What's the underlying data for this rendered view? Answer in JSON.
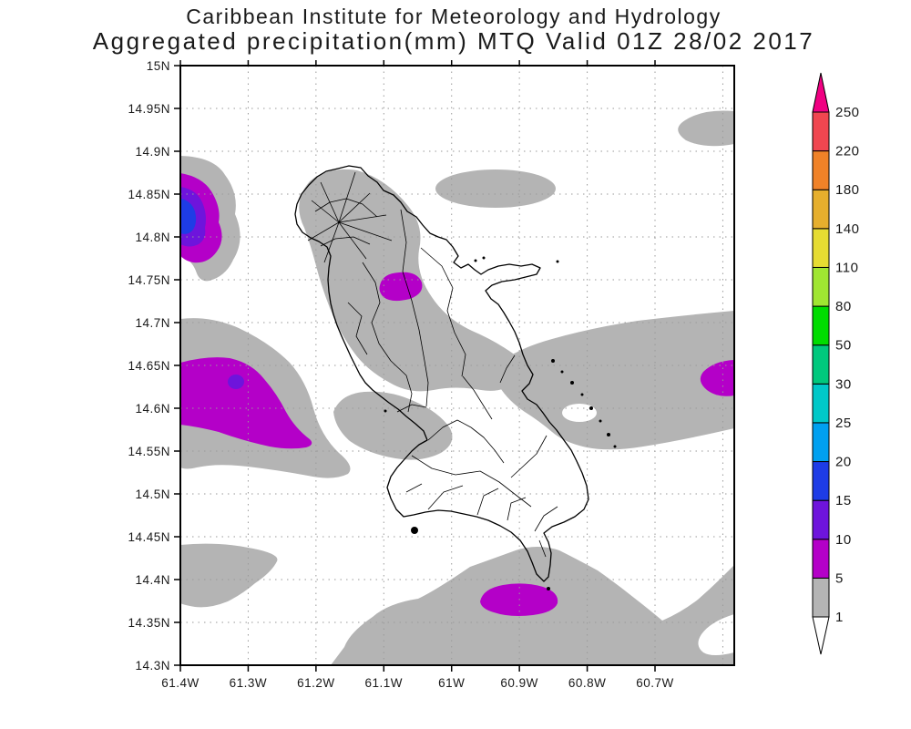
{
  "header": {
    "line1": "Caribbean Institute for Meteorology and Hydrology",
    "line2": "Aggregated precipitation(mm) MTQ Valid 01Z 28/02 2017"
  },
  "chart_data": {
    "type": "heatmap",
    "subtype": "filled-contour precipitation map over Martinique (MTQ)",
    "title": "Caribbean Institute for Meteorology and Hydrology",
    "subtitle": "Aggregated precipitation(mm) MTQ Valid 01Z 28/02 2017",
    "units": "mm",
    "grid": "on (dotted)",
    "y_axis": {
      "side": "left",
      "ticks": [
        {
          "v": 15.0,
          "label": "15N"
        },
        {
          "v": 14.95,
          "label": "14.95N"
        },
        {
          "v": 14.9,
          "label": "14.9N"
        },
        {
          "v": 14.85,
          "label": "14.85N"
        },
        {
          "v": 14.8,
          "label": "14.8N"
        },
        {
          "v": 14.75,
          "label": "14.75N"
        },
        {
          "v": 14.7,
          "label": "14.7N"
        },
        {
          "v": 14.65,
          "label": "14.65N"
        },
        {
          "v": 14.6,
          "label": "14.6N"
        },
        {
          "v": 14.55,
          "label": "14.55N"
        },
        {
          "v": 14.5,
          "label": "14.5N"
        },
        {
          "v": 14.45,
          "label": "14.45N"
        },
        {
          "v": 14.4,
          "label": "14.4N"
        },
        {
          "v": 14.35,
          "label": "14.35N"
        },
        {
          "v": 14.3,
          "label": "14.3N"
        }
      ]
    },
    "x_axis": {
      "side": "bottom",
      "ticks": [
        {
          "v": 61.4,
          "label": "61.4W"
        },
        {
          "v": 61.3,
          "label": "61.3W"
        },
        {
          "v": 61.2,
          "label": "61.2W"
        },
        {
          "v": 61.1,
          "label": "61.1W"
        },
        {
          "v": 61.0,
          "label": "61W"
        },
        {
          "v": 60.9,
          "label": "60.9W"
        },
        {
          "v": 60.8,
          "label": "60.8W"
        },
        {
          "v": 60.7,
          "label": "60.7W"
        }
      ],
      "extra_gridlines": [
        60.6
      ]
    },
    "colorbar": {
      "orientation": "vertical",
      "position": "right",
      "levels": [
        1,
        5,
        10,
        15,
        20,
        25,
        30,
        50,
        80,
        110,
        140,
        180,
        220,
        250
      ],
      "labels": [
        "1",
        "5",
        "10",
        "15",
        "20",
        "25",
        "30",
        "50",
        "80",
        "110",
        "140",
        "180",
        "220",
        "250"
      ],
      "colors": [
        "#b4b4b4",
        "#b400c8",
        "#6e14dc",
        "#1e3ce6",
        "#00a0f0",
        "#00c8c8",
        "#00c87d",
        "#00dc00",
        "#a0e632",
        "#e6dc32",
        "#e6af2d",
        "#f08228",
        "#f04650"
      ],
      "over_color": "#f00082",
      "under_color": "#ffffff"
    },
    "features": [
      {
        "area": "offshore NW at map edge near 61.4W 14.82N",
        "peak_band_mm": "15-20 (blue core, violet and magenta rings in gray 1-5 field)"
      },
      {
        "area": "offshore W near 61.35W 14.60N",
        "peak_band_mm": "10-15 spot inside large 5-10 magenta blob"
      },
      {
        "area": "inland central Martinique near 61.12W 14.75N",
        "peak_band_mm": "5-10"
      },
      {
        "area": "offshore E at map edge near 60.6W 14.62N",
        "peak_band_mm": "5-10"
      },
      {
        "area": "offshore S near 60.95W 14.37N",
        "peak_band_mm": "5-10"
      },
      {
        "area": "broad elongated bands N, NE, central-E and S of island; patches W and SW edges",
        "peak_band_mm": "1-5 (gray)"
      }
    ]
  }
}
